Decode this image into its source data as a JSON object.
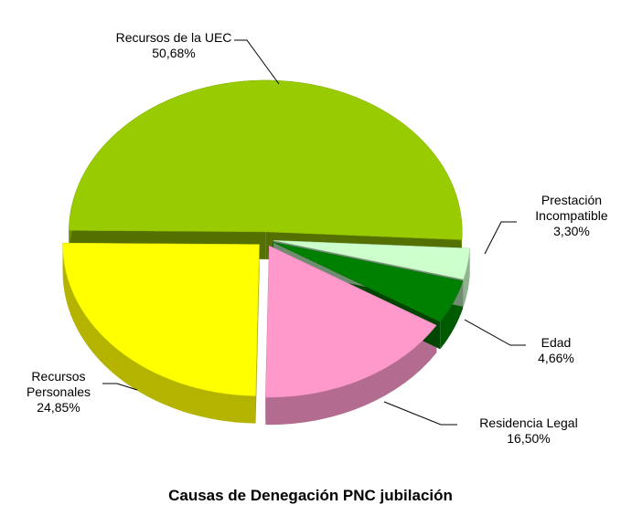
{
  "chart_data": {
    "type": "pie",
    "title": "Causas de Denegación PNC jubilación",
    "categories": [
      "Recursos de la UEC",
      "Recursos Personales",
      "Residencia Legal",
      "Edad",
      "Prestación Incompatible"
    ],
    "values": [
      50.68,
      24.85,
      16.5,
      4.66,
      3.3
    ],
    "value_labels": [
      "50,68%",
      "24,85%",
      "16,50%",
      "4,66%",
      "3,30%"
    ],
    "colors": [
      "#99cc00",
      "#ffff00",
      "#ff99cc",
      "#008000",
      "#ccffcc"
    ]
  }
}
